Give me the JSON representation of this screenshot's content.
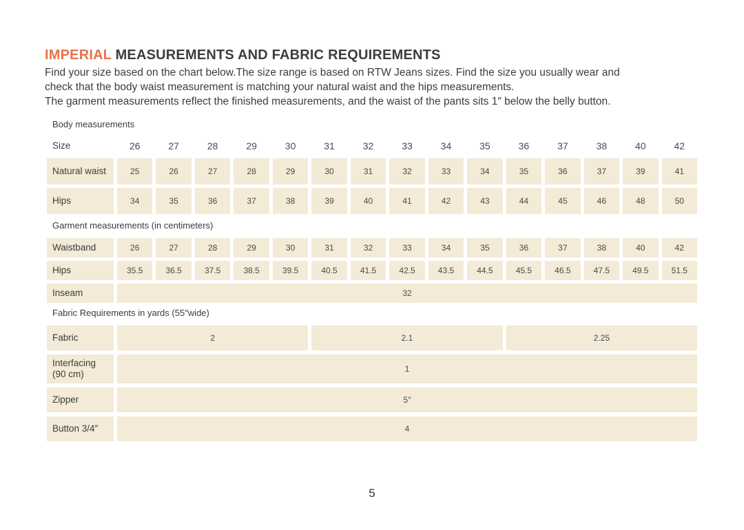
{
  "title": {
    "highlight": "IMPERIAL",
    "rest": "MEASUREMENTS AND FABRIC REQUIREMENTS"
  },
  "intro_lines": [
    "Find your size based on the chart below.The size range is based on RTW Jeans sizes. Find the size you usually wear and",
    "check that the body waist measurement is matching your natural waist and the hips measurements.",
    "The garment measurements reflect the finished measurements, and the waist of the pants sits 1″ below the belly button."
  ],
  "tables": [
    {
      "id": "body-measurements",
      "style": "body",
      "section_label": "Body measurements",
      "header": {
        "label": "Size",
        "cells": [
          "26",
          "27",
          "28",
          "29",
          "30",
          "31",
          "32",
          "33",
          "34",
          "35",
          "36",
          "37",
          "38",
          "40",
          "42"
        ]
      },
      "rows": [
        {
          "label": "Natural waist",
          "cells": [
            "25",
            "26",
            "27",
            "28",
            "29",
            "30",
            "31",
            "32",
            "33",
            "34",
            "35",
            "36",
            "37",
            "39",
            "41"
          ]
        },
        {
          "label": "Hips",
          "cells": [
            "34",
            "35",
            "36",
            "37",
            "38",
            "39",
            "40",
            "41",
            "42",
            "43",
            "44",
            "45",
            "46",
            "48",
            "50"
          ]
        }
      ]
    },
    {
      "id": "garment-measurements",
      "style": "garment",
      "section_label": "Garment measurements (in centimeters)",
      "rows": [
        {
          "label": "Waistband",
          "cells": [
            "26",
            "27",
            "28",
            "29",
            "30",
            "31",
            "32",
            "33",
            "34",
            "35",
            "36",
            "37",
            "38",
            "40",
            "42"
          ]
        },
        {
          "label": "Hips",
          "cells": [
            "35.5",
            "36.5",
            "37.5",
            "38.5",
            "39.5",
            "40.5",
            "41.5",
            "42.5",
            "43.5",
            "44.5",
            "45.5",
            "46.5",
            "47.5",
            "49.5",
            "51.5"
          ]
        },
        {
          "label": "Inseam",
          "cells": [
            {
              "value": "32",
              "span": 15
            }
          ]
        }
      ]
    },
    {
      "id": "fabric-requirements",
      "style": "fabric",
      "section_label": "Fabric Requirements in yards (55″wide)",
      "rows": [
        {
          "label": "Fabric",
          "cells": [
            {
              "value": "2",
              "span": 5
            },
            {
              "value": "2.1",
              "span": 5
            },
            {
              "value": "2.25",
              "span": 5
            }
          ]
        },
        {
          "label": "Interfacing (90 cm)",
          "cells": [
            {
              "value": "1",
              "span": 15
            }
          ]
        },
        {
          "label": "Zipper",
          "cells": [
            {
              "value": "5″",
              "span": 15
            }
          ]
        },
        {
          "label": "Button 3/4″",
          "cells": [
            {
              "value": "4",
              "span": 15
            }
          ]
        }
      ]
    }
  ],
  "page_number": "5",
  "colors": {
    "accent": "#E8734A",
    "cell_bg": "#F3EAD7",
    "text": "#3C3C3C"
  }
}
